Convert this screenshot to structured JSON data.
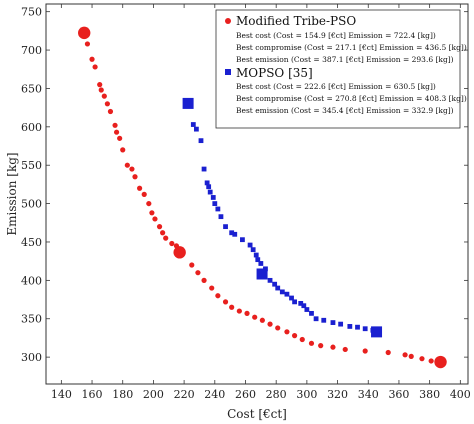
{
  "chart_data": {
    "type": "scatter",
    "xlabel": "Cost [€ct]",
    "ylabel": "Emission [kg]",
    "xlim": [
      130,
      405
    ],
    "ylim": [
      265,
      760
    ],
    "x_ticks": [
      140,
      160,
      180,
      200,
      220,
      240,
      260,
      280,
      300,
      320,
      340,
      360,
      380,
      400
    ],
    "y_ticks": [
      300,
      350,
      400,
      450,
      500,
      550,
      600,
      650,
      700,
      750
    ],
    "legend_position": "top-right",
    "grid": false,
    "series": [
      {
        "name": "Modified Tribe-PSO",
        "color": "#e8201e",
        "marker": "circle",
        "points": [
          [
            157,
            708
          ],
          [
            160,
            688
          ],
          [
            162,
            678
          ],
          [
            165,
            655
          ],
          [
            166,
            648
          ],
          [
            168,
            640
          ],
          [
            170,
            630
          ],
          [
            172,
            620
          ],
          [
            175,
            602
          ],
          [
            176,
            593
          ],
          [
            178,
            585
          ],
          [
            180,
            570
          ],
          [
            183,
            550
          ],
          [
            186,
            545
          ],
          [
            188,
            535
          ],
          [
            191,
            520
          ],
          [
            194,
            512
          ],
          [
            197,
            500
          ],
          [
            199,
            488
          ],
          [
            201,
            480
          ],
          [
            204,
            470
          ],
          [
            206,
            462
          ],
          [
            208,
            455
          ],
          [
            212,
            448
          ],
          [
            215,
            445
          ],
          [
            225,
            420
          ],
          [
            229,
            410
          ],
          [
            233,
            400
          ],
          [
            238,
            390
          ],
          [
            242,
            380
          ],
          [
            247,
            372
          ],
          [
            251,
            365
          ],
          [
            256,
            360
          ],
          [
            261,
            357
          ],
          [
            266,
            352
          ],
          [
            271,
            348
          ],
          [
            276,
            343
          ],
          [
            281,
            338
          ],
          [
            287,
            333
          ],
          [
            292,
            328
          ],
          [
            297,
            323
          ],
          [
            303,
            318
          ],
          [
            309,
            315
          ],
          [
            317,
            313
          ],
          [
            325,
            310
          ],
          [
            338,
            308
          ],
          [
            353,
            306
          ],
          [
            364,
            303
          ],
          [
            368,
            301
          ],
          [
            375,
            298
          ],
          [
            381,
            295
          ],
          [
            386,
            292
          ]
        ],
        "highlights": [
          {
            "label": "Best cost",
            "cost": 154.9,
            "emission": 722.4
          },
          {
            "label": "Best compromise",
            "cost": 217.1,
            "emission": 436.5
          },
          {
            "label": "Best emission",
            "cost": 387.1,
            "emission": 293.6
          }
        ]
      },
      {
        "name": "MOPSO [35]",
        "color": "#1a20d0",
        "marker": "square",
        "points": [
          [
            226,
            603
          ],
          [
            228,
            597
          ],
          [
            231,
            582
          ],
          [
            233,
            545
          ],
          [
            235,
            527
          ],
          [
            236,
            522
          ],
          [
            237,
            515
          ],
          [
            239,
            508
          ],
          [
            240,
            500
          ],
          [
            242,
            493
          ],
          [
            244,
            483
          ],
          [
            247,
            470
          ],
          [
            251,
            462
          ],
          [
            253,
            460
          ],
          [
            258,
            453
          ],
          [
            263,
            446
          ],
          [
            265,
            440
          ],
          [
            267,
            433
          ],
          [
            268,
            427
          ],
          [
            270,
            422
          ],
          [
            273,
            415
          ],
          [
            276,
            400
          ],
          [
            279,
            395
          ],
          [
            281,
            390
          ],
          [
            284,
            385
          ],
          [
            287,
            382
          ],
          [
            290,
            377
          ],
          [
            292,
            372
          ],
          [
            296,
            370
          ],
          [
            298,
            367
          ],
          [
            300,
            362
          ],
          [
            303,
            357
          ],
          [
            306,
            350
          ],
          [
            311,
            348
          ],
          [
            317,
            345
          ],
          [
            322,
            343
          ],
          [
            328,
            340
          ],
          [
            333,
            339
          ],
          [
            338,
            337
          ],
          [
            343,
            335
          ]
        ],
        "highlights": [
          {
            "label": "Best cost",
            "cost": 222.6,
            "emission": 630.5
          },
          {
            "label": "Best compromise",
            "cost": 270.8,
            "emission": 408.3
          },
          {
            "label": "Best emission",
            "cost": 345.4,
            "emission": 332.9
          }
        ]
      }
    ]
  },
  "legend": {
    "entries": [
      {
        "name": "Modified Tribe-PSO",
        "lines": [
          "Best cost (Cost = 154.9 [€ct] Emission = 722.4 [kg])",
          "Best compromise (Cost = 217.1 [€ct] Emission = 436.5 [kg])",
          "Best emission (Cost = 387.1 [€ct] Emission = 293.6 [kg])"
        ]
      },
      {
        "name": "MOPSO [35]",
        "lines": [
          "Best cost (Cost = 222.6 [€ct] Emission = 630.5 [kg])",
          "Best compromise (Cost = 270.8 [€ct] Emission = 408.3 [kg])",
          "Best emission (Cost = 345.4 [€ct] Emission = 332.9 [kg])"
        ]
      }
    ]
  }
}
